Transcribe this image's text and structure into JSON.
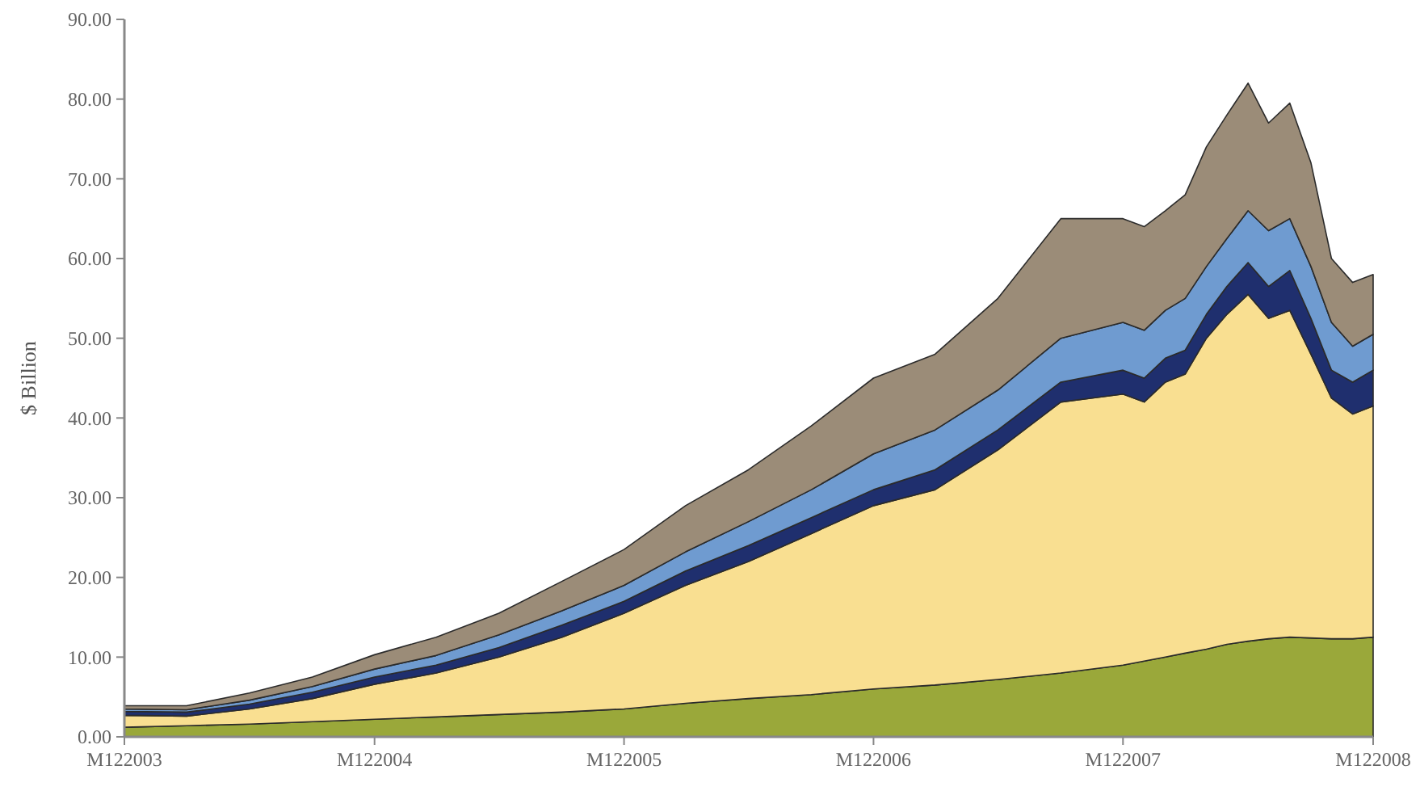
{
  "chart_data": {
    "type": "area",
    "stacked": true,
    "ylabel": "$ Billion",
    "x": [
      "2003-12",
      "2004-03",
      "2004-06",
      "2004-09",
      "2004-12",
      "2005-03",
      "2005-06",
      "2005-09",
      "2005-12",
      "2006-03",
      "2006-06",
      "2006-09",
      "2006-12",
      "2007-03",
      "2007-06",
      "2007-09",
      "2007-12",
      "2008-01",
      "2008-02",
      "2008-03",
      "2008-04",
      "2008-05",
      "2008-06",
      "2008-07",
      "2008-08",
      "2008-09",
      "2008-10",
      "2008-11",
      "2008-12"
    ],
    "series": [
      {
        "color": "#9aa83a",
        "values": [
          1.2,
          1.4,
          1.6,
          1.9,
          2.2,
          2.5,
          2.8,
          3.1,
          3.5,
          4.2,
          4.8,
          5.3,
          6.0,
          6.5,
          7.2,
          8.0,
          9.0,
          9.5,
          10.0,
          10.5,
          11.0,
          11.6,
          12.0,
          12.3,
          12.5,
          12.4,
          12.3,
          12.3,
          12.5
        ]
      },
      {
        "color": "#f9df91",
        "values": [
          1.5,
          1.2,
          1.9,
          2.9,
          4.4,
          5.5,
          7.2,
          9.4,
          12.0,
          14.8,
          17.2,
          20.2,
          23.0,
          24.5,
          28.8,
          34.0,
          34.0,
          32.5,
          34.5,
          35.0,
          39.0,
          41.4,
          43.5,
          40.2,
          41.0,
          35.6,
          30.2,
          28.2,
          29.0
        ]
      },
      {
        "color": "#1f2f6e",
        "values": [
          0.5,
          0.5,
          0.6,
          0.8,
          0.9,
          1.0,
          1.2,
          1.5,
          1.5,
          1.8,
          2.0,
          2.0,
          2.0,
          2.5,
          2.5,
          2.5,
          3.0,
          3.0,
          3.0,
          3.0,
          3.0,
          3.5,
          4.0,
          4.0,
          5.0,
          4.5,
          3.5,
          4.0,
          4.5
        ]
      },
      {
        "color": "#6f9bd0",
        "values": [
          0.3,
          0.3,
          0.5,
          0.7,
          1.0,
          1.2,
          1.6,
          1.8,
          2.0,
          2.4,
          3.0,
          3.5,
          4.5,
          5.0,
          5.0,
          5.5,
          6.0,
          6.0,
          6.0,
          6.5,
          6.0,
          6.0,
          6.5,
          7.0,
          6.5,
          6.5,
          6.0,
          4.5,
          4.5
        ]
      },
      {
        "color": "#9b8c78",
        "values": [
          0.4,
          0.5,
          0.9,
          1.2,
          1.8,
          2.3,
          2.7,
          3.7,
          4.5,
          5.8,
          6.5,
          8.0,
          9.5,
          9.5,
          11.5,
          15.0,
          13.0,
          13.0,
          12.5,
          13.0,
          15.0,
          15.5,
          16.0,
          13.5,
          14.5,
          13.0,
          8.0,
          8.0,
          7.5
        ]
      }
    ],
    "xlim": [
      "2003-12",
      "2008-12"
    ],
    "xticks": [
      {
        "value": "2003-12",
        "label": "M122003"
      },
      {
        "value": "2004-12",
        "label": "M122004"
      },
      {
        "value": "2005-12",
        "label": "M122005"
      },
      {
        "value": "2006-12",
        "label": "M122006"
      },
      {
        "value": "2007-12",
        "label": "M122007"
      },
      {
        "value": "2008-12",
        "label": "M122008"
      }
    ],
    "ylim": [
      0,
      90
    ],
    "yticks": [
      {
        "value": 0,
        "label": "0.00"
      },
      {
        "value": 10,
        "label": "10.00"
      },
      {
        "value": 20,
        "label": "20.00"
      },
      {
        "value": 30,
        "label": "30.00"
      },
      {
        "value": 40,
        "label": "40.00"
      },
      {
        "value": 50,
        "label": "50.00"
      },
      {
        "value": 60,
        "label": "60.00"
      },
      {
        "value": 70,
        "label": "70.00"
      },
      {
        "value": 80,
        "label": "80.00"
      },
      {
        "value": 90,
        "label": "90.00"
      }
    ]
  }
}
